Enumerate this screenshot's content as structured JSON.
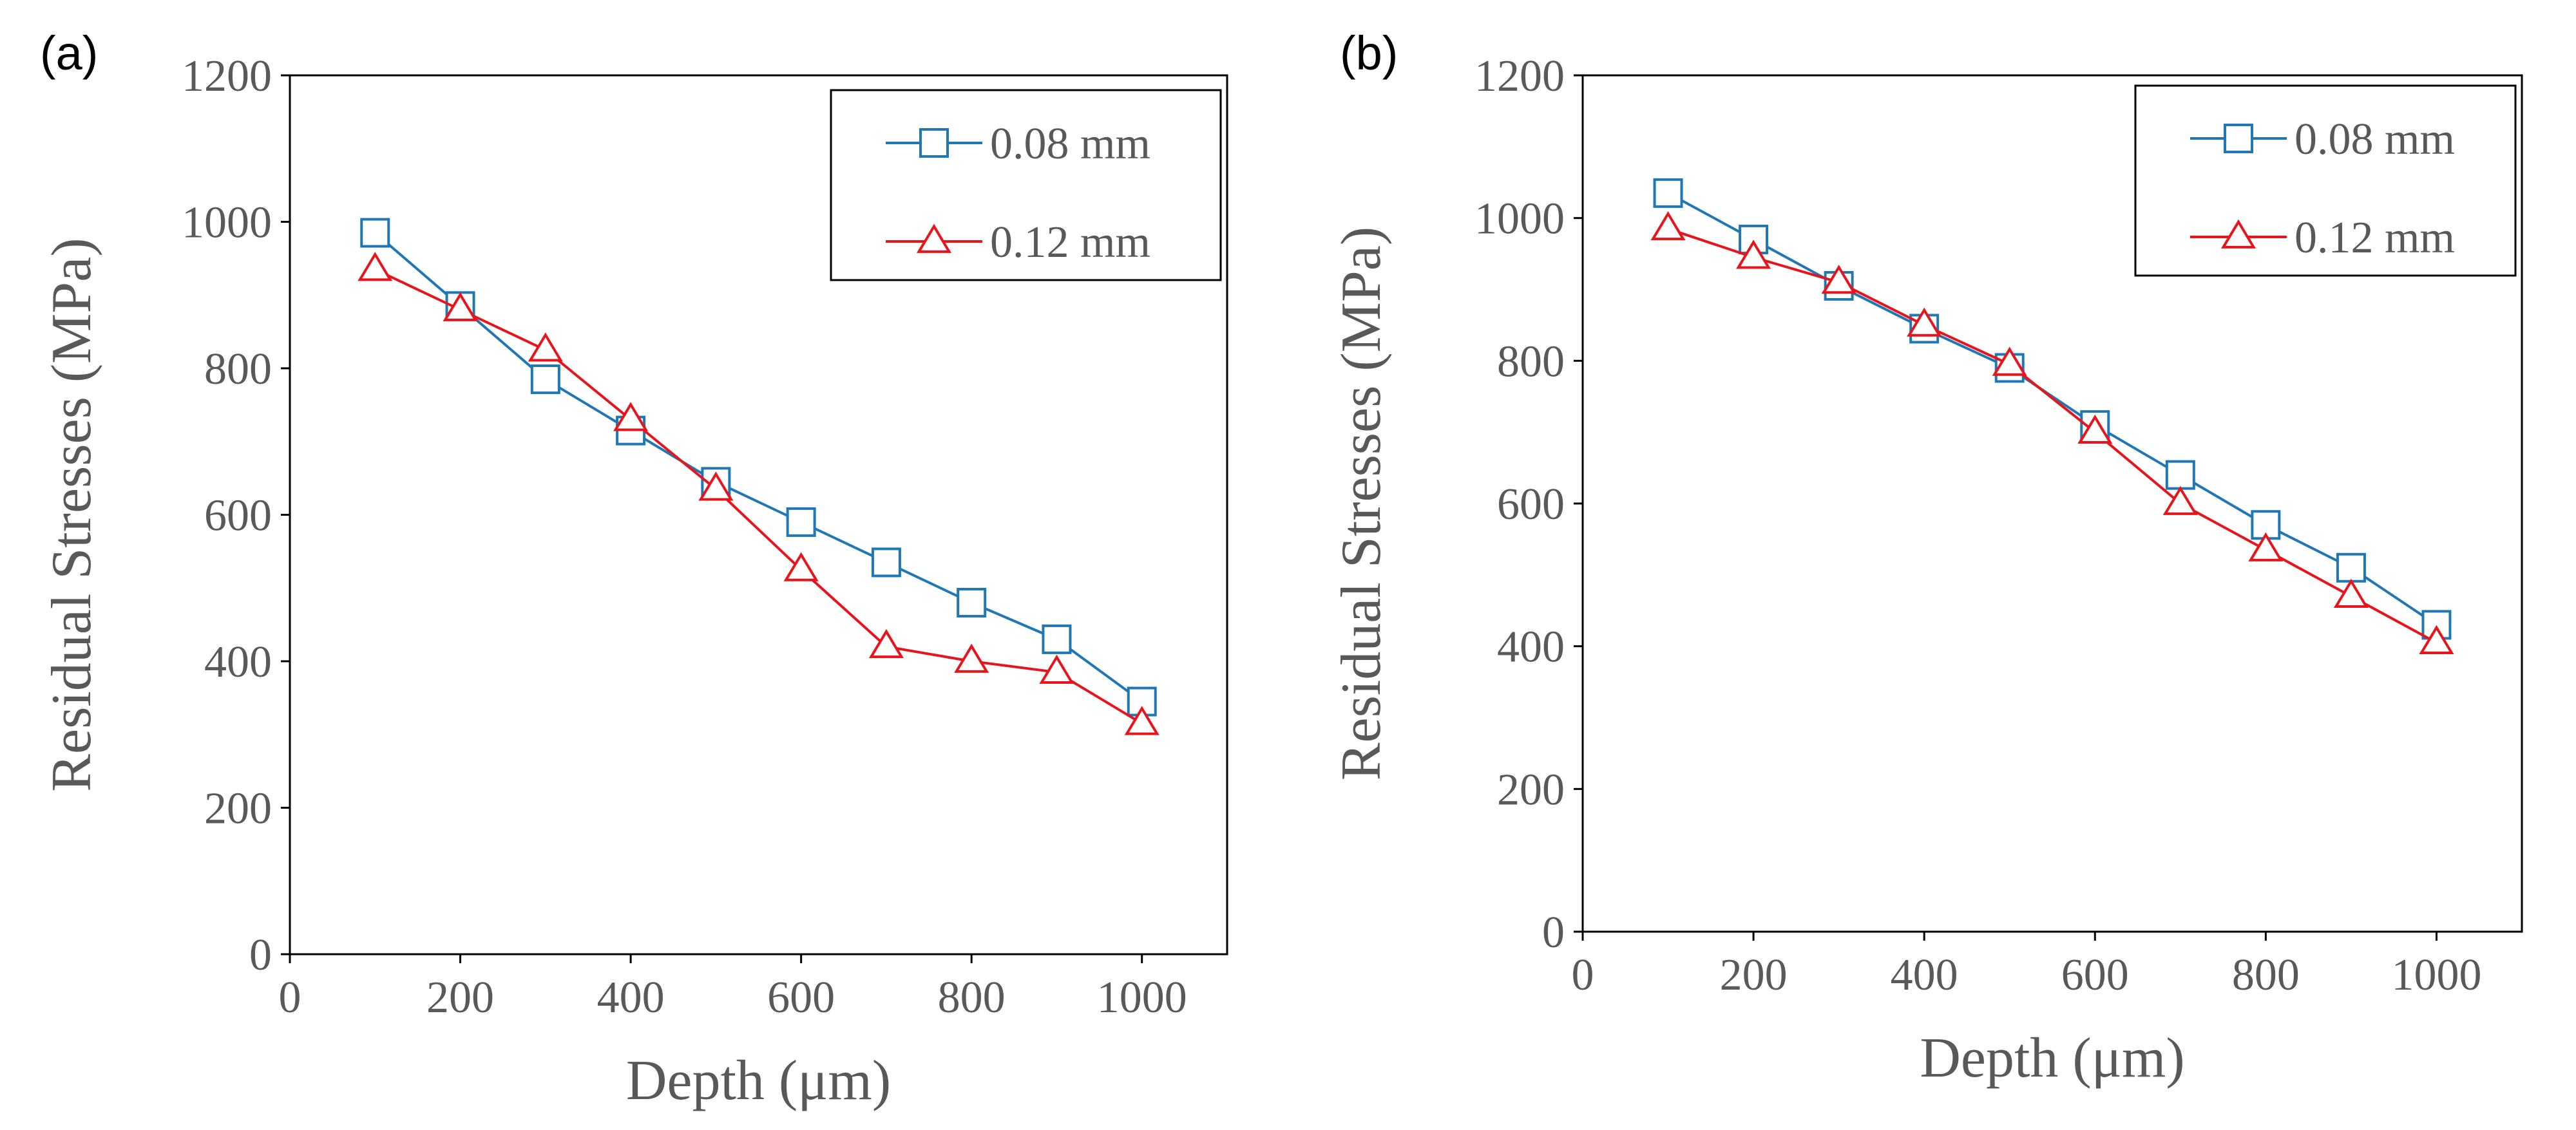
{
  "chart_data": [
    {
      "type": "line",
      "panel_label": "(a)",
      "xlabel": "Depth (μm)",
      "ylabel": "Residual Stresses (MPa)",
      "xlim": [
        0,
        1100
      ],
      "ylim": [
        0,
        1200
      ],
      "x_ticks": [
        0,
        200,
        400,
        600,
        800,
        1000
      ],
      "y_ticks": [
        0,
        200,
        400,
        600,
        800,
        1000,
        1200
      ],
      "grid": false,
      "legend_position": "top-right",
      "x": [
        100,
        200,
        300,
        400,
        500,
        600,
        700,
        800,
        900,
        1000
      ],
      "series": [
        {
          "name": "0.08 mm",
          "color": "#1f77b4",
          "marker": "square",
          "values": [
            985,
            885,
            785,
            715,
            645,
            590,
            535,
            480,
            430,
            345
          ]
        },
        {
          "name": "0.12 mm",
          "color": "#e8141b",
          "marker": "triangle",
          "values": [
            935,
            880,
            825,
            730,
            635,
            525,
            420,
            400,
            385,
            315
          ]
        }
      ]
    },
    {
      "type": "line",
      "panel_label": "(b)",
      "xlabel": "Depth (μm)",
      "ylabel": "Residual Stresses (MPa)",
      "xlim": [
        0,
        1100
      ],
      "ylim": [
        0,
        1200
      ],
      "x_ticks": [
        0,
        200,
        400,
        600,
        800,
        1000
      ],
      "y_ticks": [
        0,
        200,
        400,
        600,
        800,
        1000,
        1200
      ],
      "grid": false,
      "legend_position": "top-right",
      "x": [
        100,
        200,
        300,
        400,
        500,
        600,
        700,
        800,
        900,
        1000
      ],
      "series": [
        {
          "name": "0.08 mm",
          "color": "#1f77b4",
          "marker": "square",
          "values": [
            1035,
            970,
            905,
            845,
            790,
            710,
            640,
            570,
            510,
            430
          ]
        },
        {
          "name": "0.12 mm",
          "color": "#e8141b",
          "marker": "triangle",
          "values": [
            985,
            945,
            910,
            850,
            795,
            700,
            600,
            535,
            470,
            405
          ]
        }
      ]
    }
  ]
}
